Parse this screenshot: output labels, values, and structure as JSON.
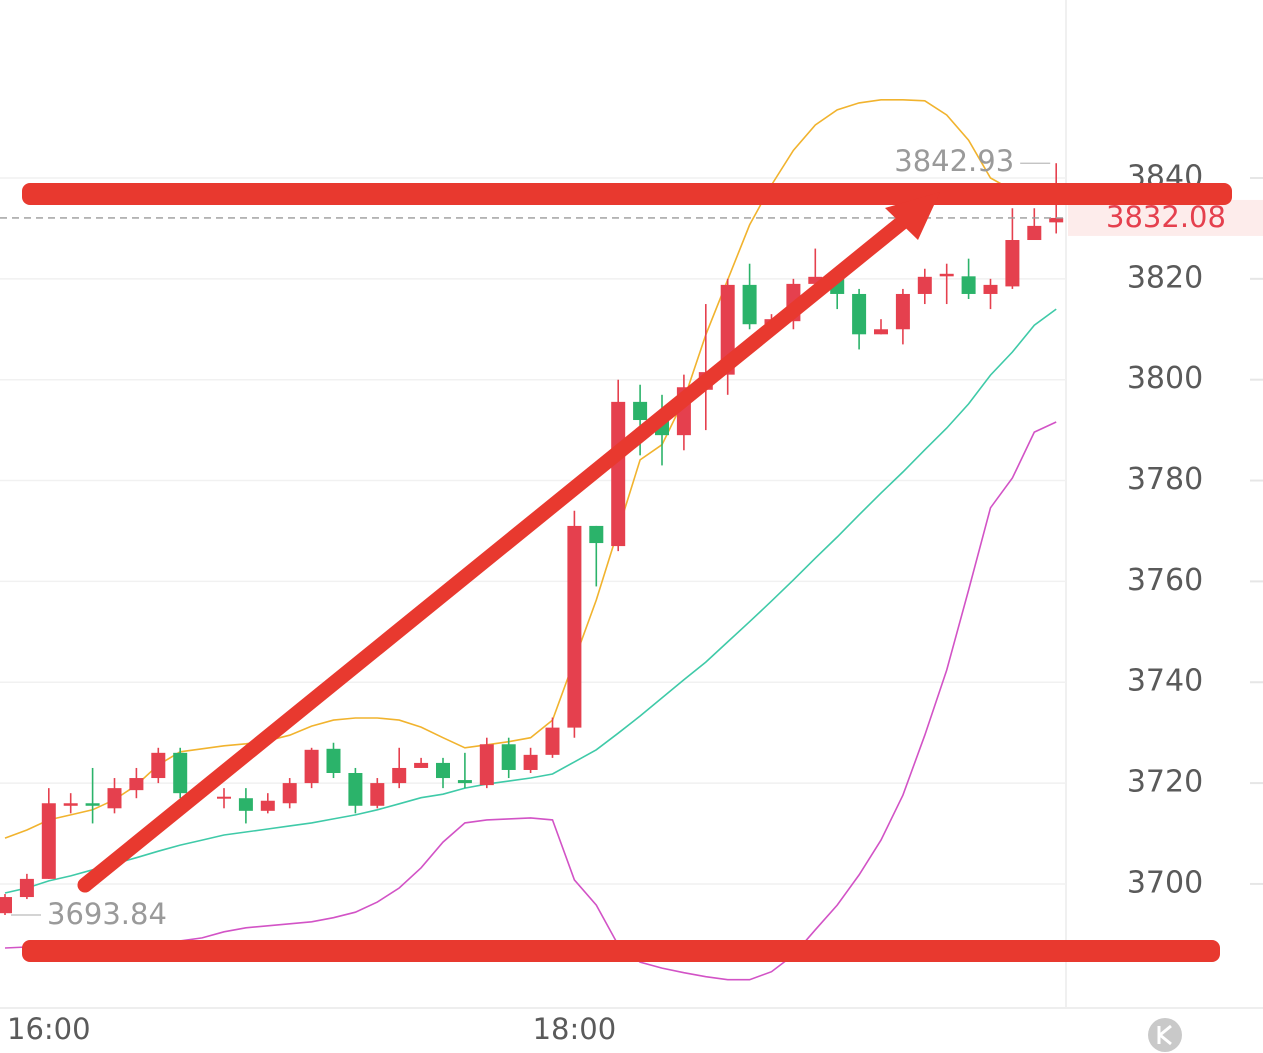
{
  "chart_data": {
    "type": "candlestick",
    "categories": [
      null,
      null,
      "16:00",
      null,
      null,
      null,
      null,
      null,
      null,
      null,
      null,
      null,
      null,
      null,
      null,
      null,
      null,
      null,
      null,
      null,
      null,
      null,
      null,
      null,
      null,
      null,
      "18:00",
      null,
      null,
      null,
      null,
      null,
      null,
      null,
      null,
      null,
      null,
      null,
      null,
      null,
      null,
      null,
      null,
      null,
      null,
      null,
      null,
      null,
      null
    ],
    "open": [
      3694.2,
      3697.4,
      3701,
      3715.5,
      3716,
      3715,
      3718.6,
      3721,
      3726,
      3719,
      3717,
      3717,
      3714.5,
      3716,
      3720,
      3726.8,
      3722,
      3715.5,
      3720,
      3723,
      3724,
      3720.6,
      3719.6,
      3727.7,
      3722.6,
      3725.6,
      3731,
      3771,
      3767,
      3795.6,
      3792,
      3789,
      3798,
      3801,
      3818.8,
      3811,
      3811.6,
      3819,
      3820.4,
      3817,
      3809,
      3810,
      3817,
      3820.5,
      3820.5,
      3817,
      3818.5,
      3827.7,
      3831.2
    ],
    "high": [
      3698,
      3702,
      3719,
      3718,
      3723,
      3721,
      3723,
      3727,
      3727,
      3720,
      3719,
      3719,
      3718,
      3721,
      3727,
      3728,
      3723,
      3721,
      3727,
      3725,
      3725,
      3726,
      3729,
      3729,
      3727,
      3733,
      3774,
      3771,
      3800,
      3799,
      3797,
      3801,
      3815,
      3820,
      3823,
      3813,
      3820,
      3826,
      3821,
      3818,
      3812,
      3818,
      3822,
      3823,
      3824,
      3820,
      3834,
      3834,
      3842.93
    ],
    "low": [
      3693.84,
      3697,
      3701,
      3714,
      3712,
      3714,
      3717,
      3720,
      3717,
      3717,
      3715,
      3712,
      3714,
      3715,
      3719,
      3721,
      3714,
      3715,
      3719,
      3723,
      3719,
      3719,
      3719,
      3721,
      3722,
      3725,
      3729,
      3759,
      3766,
      3785,
      3783,
      3786,
      3790,
      3797,
      3810,
      3810,
      3810,
      3818,
      3814,
      3806,
      3809,
      3807,
      3815,
      3815,
      3816,
      3814,
      3818,
      3828,
      3829
    ],
    "close": [
      3697.4,
      3701,
      3716,
      3716,
      3715.5,
      3719,
      3721,
      3726,
      3718,
      3718,
      3717.3,
      3714.5,
      3716.5,
      3720,
      3726.6,
      3722,
      3715.5,
      3720,
      3723,
      3724,
      3721,
      3720,
      3727.7,
      3722.6,
      3725.6,
      3731,
      3771,
      3767.6,
      3795.6,
      3792,
      3789,
      3798.5,
      3801.5,
      3818.8,
      3811,
      3812,
      3819,
      3820.4,
      3817,
      3809,
      3810,
      3817,
      3820.4,
      3821,
      3817,
      3818.8,
      3827.7,
      3830.5,
      3832.08
    ],
    "up_color": "#e5404e",
    "down_color": "#2bb36a",
    "bands": [
      {
        "color": "#f1b32e",
        "values": [
          3709.1,
          3710.7,
          3712.7,
          3713.7,
          3714.7,
          3716.7,
          3719.6,
          3723.6,
          3726.2,
          3726.8,
          3727.4,
          3727.8,
          3728.4,
          3729.5,
          3731.3,
          3732.5,
          3732.9,
          3732.9,
          3732.5,
          3731.1,
          3729.0,
          3727.0,
          3727.6,
          3728.2,
          3729.0,
          3732.5,
          3744.4,
          3756.3,
          3770.2,
          3784.1,
          3787.1,
          3796.0,
          3808.9,
          3819.8,
          3830.7,
          3838.6,
          3845.5,
          3850.5,
          3853.5,
          3854.9,
          3855.5,
          3855.5,
          3855.3,
          3852.5,
          3847.5,
          3840.0,
          3837.6,
          3836.6,
          3835.6
        ]
      },
      {
        "color": "#3fcaa8",
        "values": [
          3698.2,
          3699.2,
          3700.6,
          3701.6,
          3702.8,
          3704.0,
          3705.2,
          3706.5,
          3707.7,
          3708.7,
          3709.7,
          3710.3,
          3710.9,
          3711.5,
          3712.1,
          3712.9,
          3713.7,
          3714.7,
          3715.9,
          3717.1,
          3717.8,
          3719.0,
          3719.8,
          3720.4,
          3721.0,
          3721.8,
          3724.2,
          3726.6,
          3729.9,
          3733.3,
          3736.9,
          3740.5,
          3744.0,
          3748.0,
          3752.0,
          3756.1,
          3760.3,
          3764.6,
          3768.8,
          3773.2,
          3777.5,
          3781.7,
          3786.1,
          3790.4,
          3795.2,
          3800.9,
          3805.5,
          3810.8,
          3814.0
        ]
      },
      {
        "color": "#d253c6",
        "values": [
          3687.3,
          3687.5,
          3687.7,
          3687.9,
          3687.9,
          3688.1,
          3688.3,
          3688.5,
          3688.7,
          3689.3,
          3690.5,
          3691.3,
          3691.7,
          3692.1,
          3692.5,
          3693.3,
          3694.4,
          3696.4,
          3699.2,
          3703.2,
          3708.3,
          3712.1,
          3712.7,
          3712.9,
          3713.1,
          3712.7,
          3700.8,
          3695.8,
          3687.9,
          3684.5,
          3683.3,
          3682.4,
          3681.6,
          3681.0,
          3681.0,
          3682.6,
          3685.9,
          3690.9,
          3695.8,
          3701.8,
          3708.7,
          3717.6,
          3729.5,
          3742.4,
          3758.3,
          3774.6,
          3780.5,
          3789.6,
          3791.6
        ]
      }
    ],
    "ylim": [
      3675,
      3875
    ],
    "yticks": [
      3700,
      3720,
      3740,
      3760,
      3780,
      3800,
      3820,
      3840
    ],
    "grid": true
  }
}
